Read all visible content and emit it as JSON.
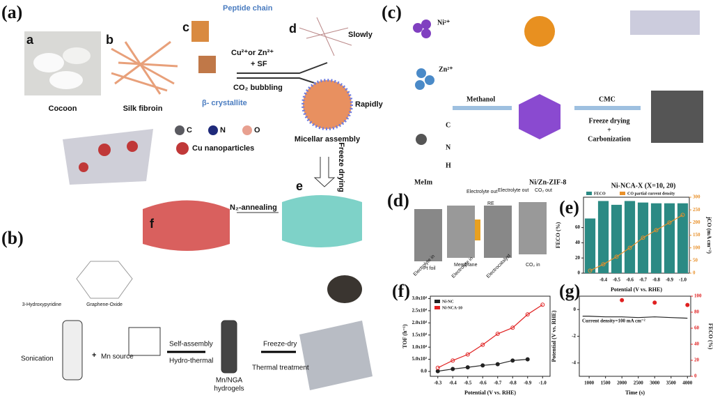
{
  "panels": {
    "a": {
      "label": "(a)",
      "sub_a": "a",
      "sub_b": "b",
      "sub_c": "c",
      "sub_d": "d",
      "sub_e": "e",
      "sub_f": "f",
      "cocoon": "Cocoon",
      "silk": "Silk fibroin",
      "peptide": "Peptide chain",
      "crystallite": "β- crystallite",
      "ions": "Cu²⁺or Zn²⁺",
      "sf": "+ SF",
      "bubbling": "CO₂ bubbling",
      "slowly": "Slowly",
      "rapidly": "Rapidly",
      "micellar": "Micellar assembly",
      "freeze": "Freeze drying",
      "annealing": "N₂-annealing",
      "c_atom": "C",
      "n_atom": "N",
      "o_atom": "O",
      "cu": "Cu nanoparticles"
    },
    "b": {
      "label": "(b)",
      "pyridine": "3-Hydroxypyridine",
      "go": "Graphene-Oxide",
      "sonication": "Sonication",
      "plus": "+",
      "mn": "Mn source",
      "self": "Self-assembly",
      "hydro": "Hydro-thermal",
      "gel1": "Mn/NGA",
      "gel2": "hydrogels",
      "freeze": "Freeze-dry",
      "thermal": "Thermal treatment"
    },
    "c": {
      "label": "(c)",
      "ni": "Ni²⁺",
      "zn": "Zn²⁺",
      "c_atom": "C",
      "n_atom": "N",
      "h_atom": "H",
      "methanol": "Methanol",
      "cmc": "CMC",
      "freeze": "Freeze drying",
      "plus": "+",
      "carbon": "Carbonization",
      "meim": "MeIm",
      "zif": "Ni/Zn-ZIF-8"
    },
    "d": {
      "label": "(d)",
      "out1": "Electrolyte out",
      "out2": "Electrolyte out",
      "co2out": "CO₂ out",
      "re": "RE",
      "pt": "Pt foil",
      "in1": "Electrolyte in",
      "membrane": "Membrane",
      "in2": "Electrolyte in",
      "catalyst": "Electrocatalyst",
      "co2in": "CO₂ in"
    }
  },
  "chart_data": [
    {
      "type": "bar",
      "panel_label": "(e)",
      "title": "Ni-NCA-X (X=10, 20)",
      "x_label": "Potential (V vs. RHE)",
      "y_label": "FECO (%)",
      "y2_label": "jCO (mA cm⁻²)",
      "categories": [
        null,
        "-0.4",
        "-0.5",
        "-0.6",
        "-0.7",
        "-0.8",
        "-0.9",
        "-1.0"
      ],
      "series": [
        {
          "name": "FECO",
          "color": "#2b8a84",
          "values": [
            72,
            95,
            90,
            95,
            93,
            92,
            92,
            92
          ]
        },
        {
          "name": "CO partial current density",
          "color": "#e8902a",
          "type": "line",
          "axis": "y2",
          "values": [
            10,
            35,
            65,
            100,
            140,
            170,
            200,
            230
          ]
        }
      ],
      "ylim": [
        0,
        100
      ],
      "yticks": [
        0,
        20,
        40,
        60
      ],
      "y2lim": [
        0,
        300
      ],
      "y2ticks": [
        0,
        50,
        100,
        150,
        200,
        250,
        300
      ],
      "legend": "top"
    },
    {
      "type": "line",
      "panel_label": "(f)",
      "x_label": "Potential (V vs. RHE)",
      "y_label": "TOF (h⁻¹)",
      "x": [
        -0.3,
        -0.4,
        -0.5,
        -0.6,
        -0.7,
        -0.8,
        -0.9,
        -1.0
      ],
      "series": [
        {
          "name": "Ni-NC",
          "color": "#222222",
          "values": [
            100,
            1000,
            1700,
            2500,
            3000,
            4500,
            5000,
            null
          ]
        },
        {
          "name": "Ni-NCA-10",
          "color": "#e02020",
          "values": [
            1500,
            4500,
            7000,
            11000,
            15500,
            18000,
            23500,
            27500
          ]
        }
      ],
      "xlim": [
        -0.25,
        -1.05
      ],
      "xticks": [
        -0.3,
        -0.4,
        -0.5,
        -0.6,
        -0.7,
        -0.8,
        -0.9,
        {
          "value": -1,
          "label": "-1.0"
        }
      ],
      "ylim": [
        -2000,
        31000
      ],
      "yticks": [
        {
          "value": 0,
          "label": "0.0"
        },
        {
          "value": 5000,
          "label": "5.0x10³"
        },
        {
          "value": 10000,
          "label": "1.0x10⁴"
        },
        {
          "value": 15000,
          "label": "1.5x10⁴"
        },
        {
          "value": 20000,
          "label": "2.0x10⁴"
        },
        {
          "value": 25000,
          "label": "2.5x10⁴"
        },
        {
          "value": 30000,
          "label": "3.0x10⁴"
        }
      ],
      "legend": "top-left"
    },
    {
      "type": "line",
      "panel_label": "(g)",
      "x_label": "Time (s)",
      "y_label": "Potential (V vs. RHE)",
      "y2_label": "FECO (%)",
      "annotation": "Current density=100 mA cm⁻²",
      "x": [
        800,
        1000,
        1500,
        2000,
        2500,
        3000,
        3500,
        4000
      ],
      "series": [
        {
          "color": "#222222",
          "values": [
            -0.5,
            -0.5,
            -0.55,
            -0.55,
            -0.6,
            -0.55,
            -0.6,
            -0.65
          ]
        },
        {
          "color": "#e02020",
          "axis": "y2",
          "markers": true,
          "values": [
            null,
            null,
            null,
            95,
            null,
            92,
            null,
            89
          ]
        }
      ],
      "xlim": [
        700,
        4100
      ],
      "xticks": [
        1000,
        1500,
        2000,
        2500,
        3000,
        3500,
        4000
      ],
      "ylim": [
        -5,
        1
      ],
      "yticks": [
        -4,
        -2,
        0
      ],
      "y2lim": [
        0,
        100
      ],
      "y2ticks": [
        0,
        20,
        40,
        60,
        80,
        100
      ]
    }
  ]
}
